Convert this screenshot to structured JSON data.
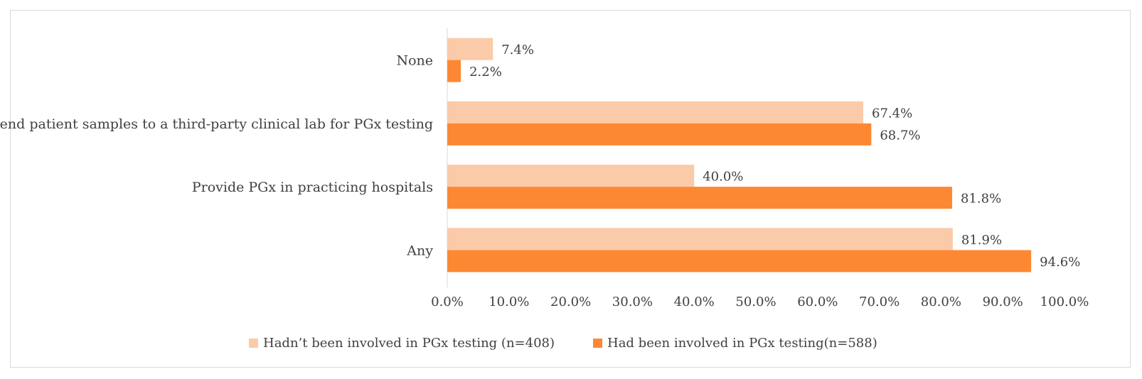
{
  "chart_data": {
    "type": "bar",
    "orientation": "horizontal",
    "title": "",
    "xlabel": "",
    "ylabel": "",
    "xlim": [
      0,
      100
    ],
    "grid": false,
    "categories": [
      "None",
      "Send patient samples to a third-party clinical lab for PGx testing",
      "Provide PGx in practicing hospitals",
      "Any"
    ],
    "series": [
      {
        "name": "Hadn’t been involved in PGx testing (n=408)",
        "color": "#fbcaa8",
        "values": [
          7.4,
          67.4,
          40.0,
          81.9
        ],
        "labels": [
          "7.4%",
          "67.4%",
          "40.0%",
          "81.9%"
        ]
      },
      {
        "name": "Had been involved in PGx testing(n=588)",
        "color": "#fd8833",
        "values": [
          2.2,
          68.7,
          81.8,
          94.6
        ],
        "labels": [
          "2.2%",
          "68.7%",
          "81.8%",
          "94.6%"
        ]
      }
    ],
    "x_ticks": [
      0,
      10,
      20,
      30,
      40,
      50,
      60,
      70,
      80,
      90,
      100
    ],
    "x_tick_labels": [
      "0.0%",
      "10.0%",
      "20.0%",
      "30.0%",
      "40.0%",
      "50.0%",
      "60.0%",
      "70.0%",
      "80.0%",
      "90.0%",
      "100.0%"
    ],
    "legend_position": "bottom"
  }
}
